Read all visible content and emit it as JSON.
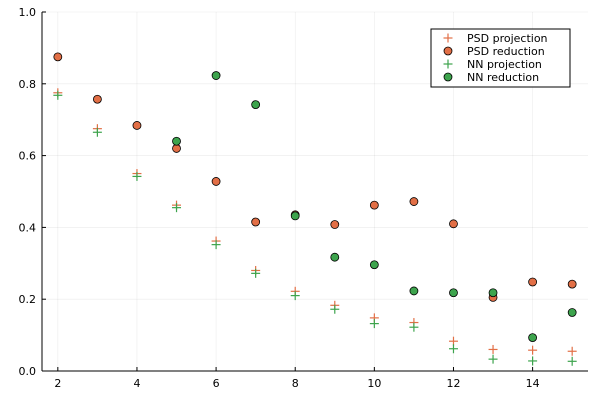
{
  "chart_data": {
    "type": "scatter",
    "xlim": [
      1.6,
      15.4
    ],
    "ylim": [
      0,
      1
    ],
    "xticks": [
      2,
      4,
      6,
      8,
      10,
      12,
      14
    ],
    "yticks": [
      0.0,
      0.2,
      0.4,
      0.6,
      0.8,
      1.0
    ],
    "xtick_labels": [
      "2",
      "4",
      "6",
      "8",
      "10",
      "12",
      "14"
    ],
    "ytick_labels": [
      "0.0",
      "0.2",
      "0.4",
      "0.6",
      "0.8",
      "1.0"
    ],
    "grid": true,
    "legend_position": "top-right",
    "series": [
      {
        "name": "PSD projection",
        "marker": "cross",
        "color": "#e26f46",
        "x": [
          2,
          3,
          4,
          5,
          6,
          7,
          8,
          9,
          10,
          11,
          12,
          13,
          14,
          15
        ],
        "y": [
          0.775,
          0.675,
          0.55,
          0.462,
          0.362,
          0.28,
          0.222,
          0.183,
          0.148,
          0.135,
          0.083,
          0.06,
          0.058,
          0.055
        ]
      },
      {
        "name": "PSD reduction",
        "marker": "circle",
        "color": "#e26f46",
        "x": [
          2,
          3,
          4,
          5,
          6,
          7,
          8,
          9,
          10,
          11,
          12,
          13,
          14,
          15
        ],
        "y": [
          0.875,
          0.757,
          0.684,
          0.62,
          0.528,
          0.415,
          0.435,
          0.408,
          0.462,
          0.472,
          0.41,
          0.205,
          0.248,
          0.242
        ]
      },
      {
        "name": "NN projection",
        "marker": "cross",
        "color": "#3da44d",
        "x": [
          2,
          3,
          4,
          5,
          6,
          7,
          8,
          9,
          10,
          11,
          12,
          13,
          14,
          15
        ],
        "y": [
          0.768,
          0.665,
          0.542,
          0.455,
          0.352,
          0.272,
          0.21,
          0.172,
          0.132,
          0.122,
          0.062,
          0.033,
          0.028,
          0.027
        ]
      },
      {
        "name": "NN reduction",
        "marker": "circle",
        "color": "#3da44d",
        "x": [
          5,
          6,
          7,
          8,
          9,
          10,
          11,
          12,
          13,
          14,
          15
        ],
        "y": [
          0.64,
          0.823,
          0.742,
          0.432,
          0.317,
          0.296,
          0.223,
          0.218,
          0.218,
          0.093,
          0.163
        ]
      }
    ]
  }
}
